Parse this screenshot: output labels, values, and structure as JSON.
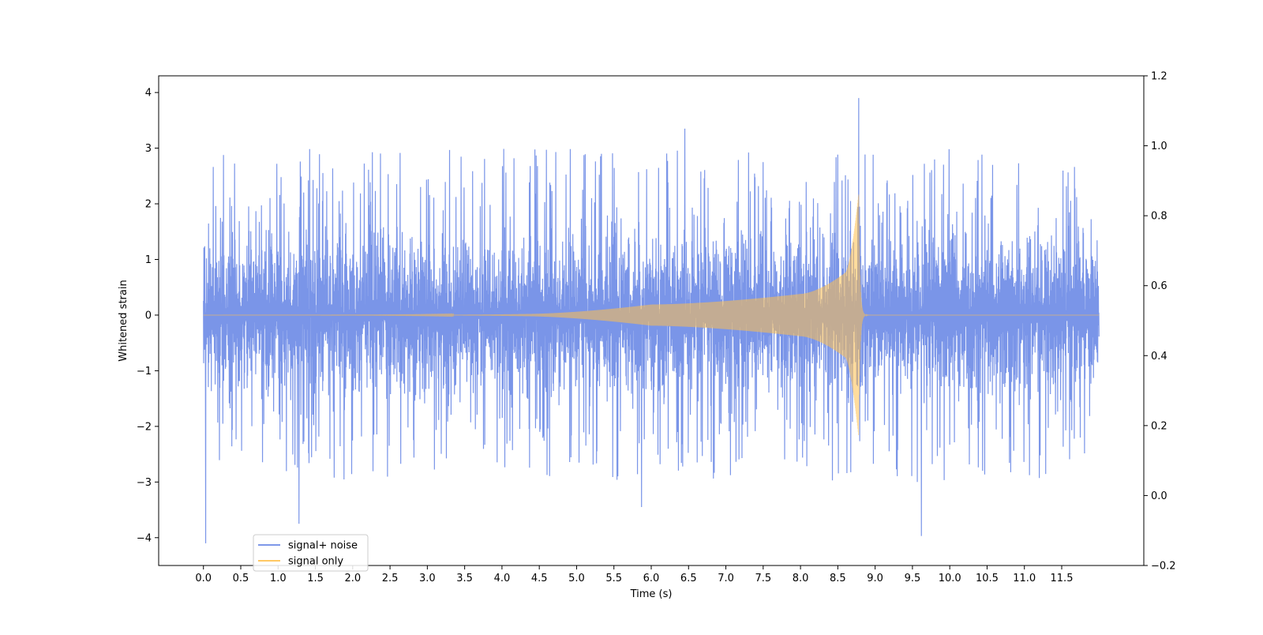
{
  "chart_data": {
    "type": "line",
    "title": "",
    "xlabel": "Time (s)",
    "ylabel": "Whitened strain",
    "xlim": [
      -0.6,
      12.6
    ],
    "ylim": [
      -4.5,
      4.3
    ],
    "y2lim": [
      -0.2,
      1.2
    ],
    "xticks": [
      0.0,
      0.5,
      1.0,
      1.5,
      2.0,
      2.5,
      3.0,
      3.5,
      4.0,
      4.5,
      5.0,
      5.5,
      6.0,
      6.5,
      7.0,
      7.5,
      8.0,
      8.5,
      9.0,
      9.5,
      10.0,
      10.5,
      11.0,
      11.5
    ],
    "xtick_labels": [
      "0.0",
      "0.5",
      "1.0",
      "1.5",
      "2.0",
      "2.5",
      "3.0",
      "3.5",
      "4.0",
      "4.5",
      "5.0",
      "5.5",
      "6.0",
      "6.5",
      "7.0",
      "7.5",
      "8.0",
      "8.5",
      "9.0",
      "9.5",
      "10.0",
      "10.5",
      "11.0",
      "11.5"
    ],
    "yticks": [
      4,
      3,
      2,
      1,
      0,
      -1,
      -2,
      -3,
      -4
    ],
    "ytick_labels": [
      "4",
      "3",
      "2",
      "1",
      "0",
      "−1",
      "−2",
      "−3",
      "−4"
    ],
    "y2ticks": [
      1.2,
      1.0,
      0.8,
      0.6,
      0.4,
      0.2,
      0.0,
      -0.2
    ],
    "y2tick_labels": [
      "1.2",
      "1.0",
      "0.8",
      "0.6",
      "0.4",
      "0.2",
      "0.0",
      "−0.2"
    ],
    "legend_position": "lower-left",
    "grid": false,
    "series": [
      {
        "name": "signal+ noise",
        "color": "#6b8ae6",
        "x_range": [
          0.0,
          12.0
        ],
        "description_points": [
          {
            "x": 0.03,
            "y": -4.1
          },
          {
            "x": 1.28,
            "y": -3.75
          },
          {
            "x": 5.87,
            "y": -3.45
          },
          {
            "x": 6.45,
            "y": 3.35
          },
          {
            "x": 8.78,
            "y": 3.9
          },
          {
            "x": 9.62,
            "y": -3.97
          }
        ]
      },
      {
        "name": "signal only",
        "color": "#ffc04d",
        "x_range": [
          0.0,
          12.0
        ],
        "merger_time": 8.78,
        "peak_amplitude": 2.3,
        "description_points": [
          {
            "x": 4.3,
            "y": 0.02
          },
          {
            "x": 6.0,
            "y": 0.2
          },
          {
            "x": 8.0,
            "y": 0.4
          },
          {
            "x": 8.6,
            "y": 0.8
          },
          {
            "x": 8.78,
            "y": 2.3
          }
        ]
      }
    ]
  }
}
